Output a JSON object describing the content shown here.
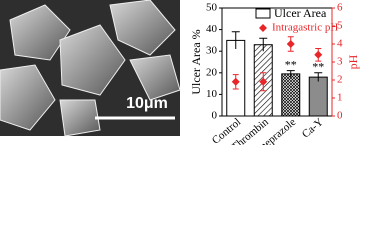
{
  "image": {
    "scale_bar_label": "10μm"
  },
  "chart_data": {
    "type": "bar",
    "categories": [
      "Control",
      "Thrombin",
      "Omeprazole",
      "Ca-Y"
    ],
    "ylabel": "Ulcer Area %",
    "y2label": "pH",
    "ylim": [
      0,
      50
    ],
    "yticks": [
      0,
      10,
      20,
      30,
      40,
      50
    ],
    "y2lim": [
      0,
      6
    ],
    "y2ticks": [
      0,
      1,
      2,
      3,
      4,
      5,
      6
    ],
    "y2color": "#e8262a",
    "series": [
      {
        "name": "Ulcer Area",
        "type": "bar",
        "color": "#000000",
        "fills": [
          "none",
          "hatch",
          "crosshatch",
          "gray"
        ],
        "values": [
          35,
          33,
          19.5,
          18
        ],
        "errors": [
          4,
          3,
          1.5,
          2
        ],
        "annotations": [
          null,
          null,
          "**",
          "**"
        ]
      },
      {
        "name": "Intragastric pH",
        "type": "scatter",
        "axis": "y2",
        "color": "#e8262a",
        "values": [
          1.9,
          1.9,
          4.0,
          3.4
        ],
        "errors": [
          0.4,
          0.5,
          0.4,
          0.35
        ]
      }
    ]
  }
}
